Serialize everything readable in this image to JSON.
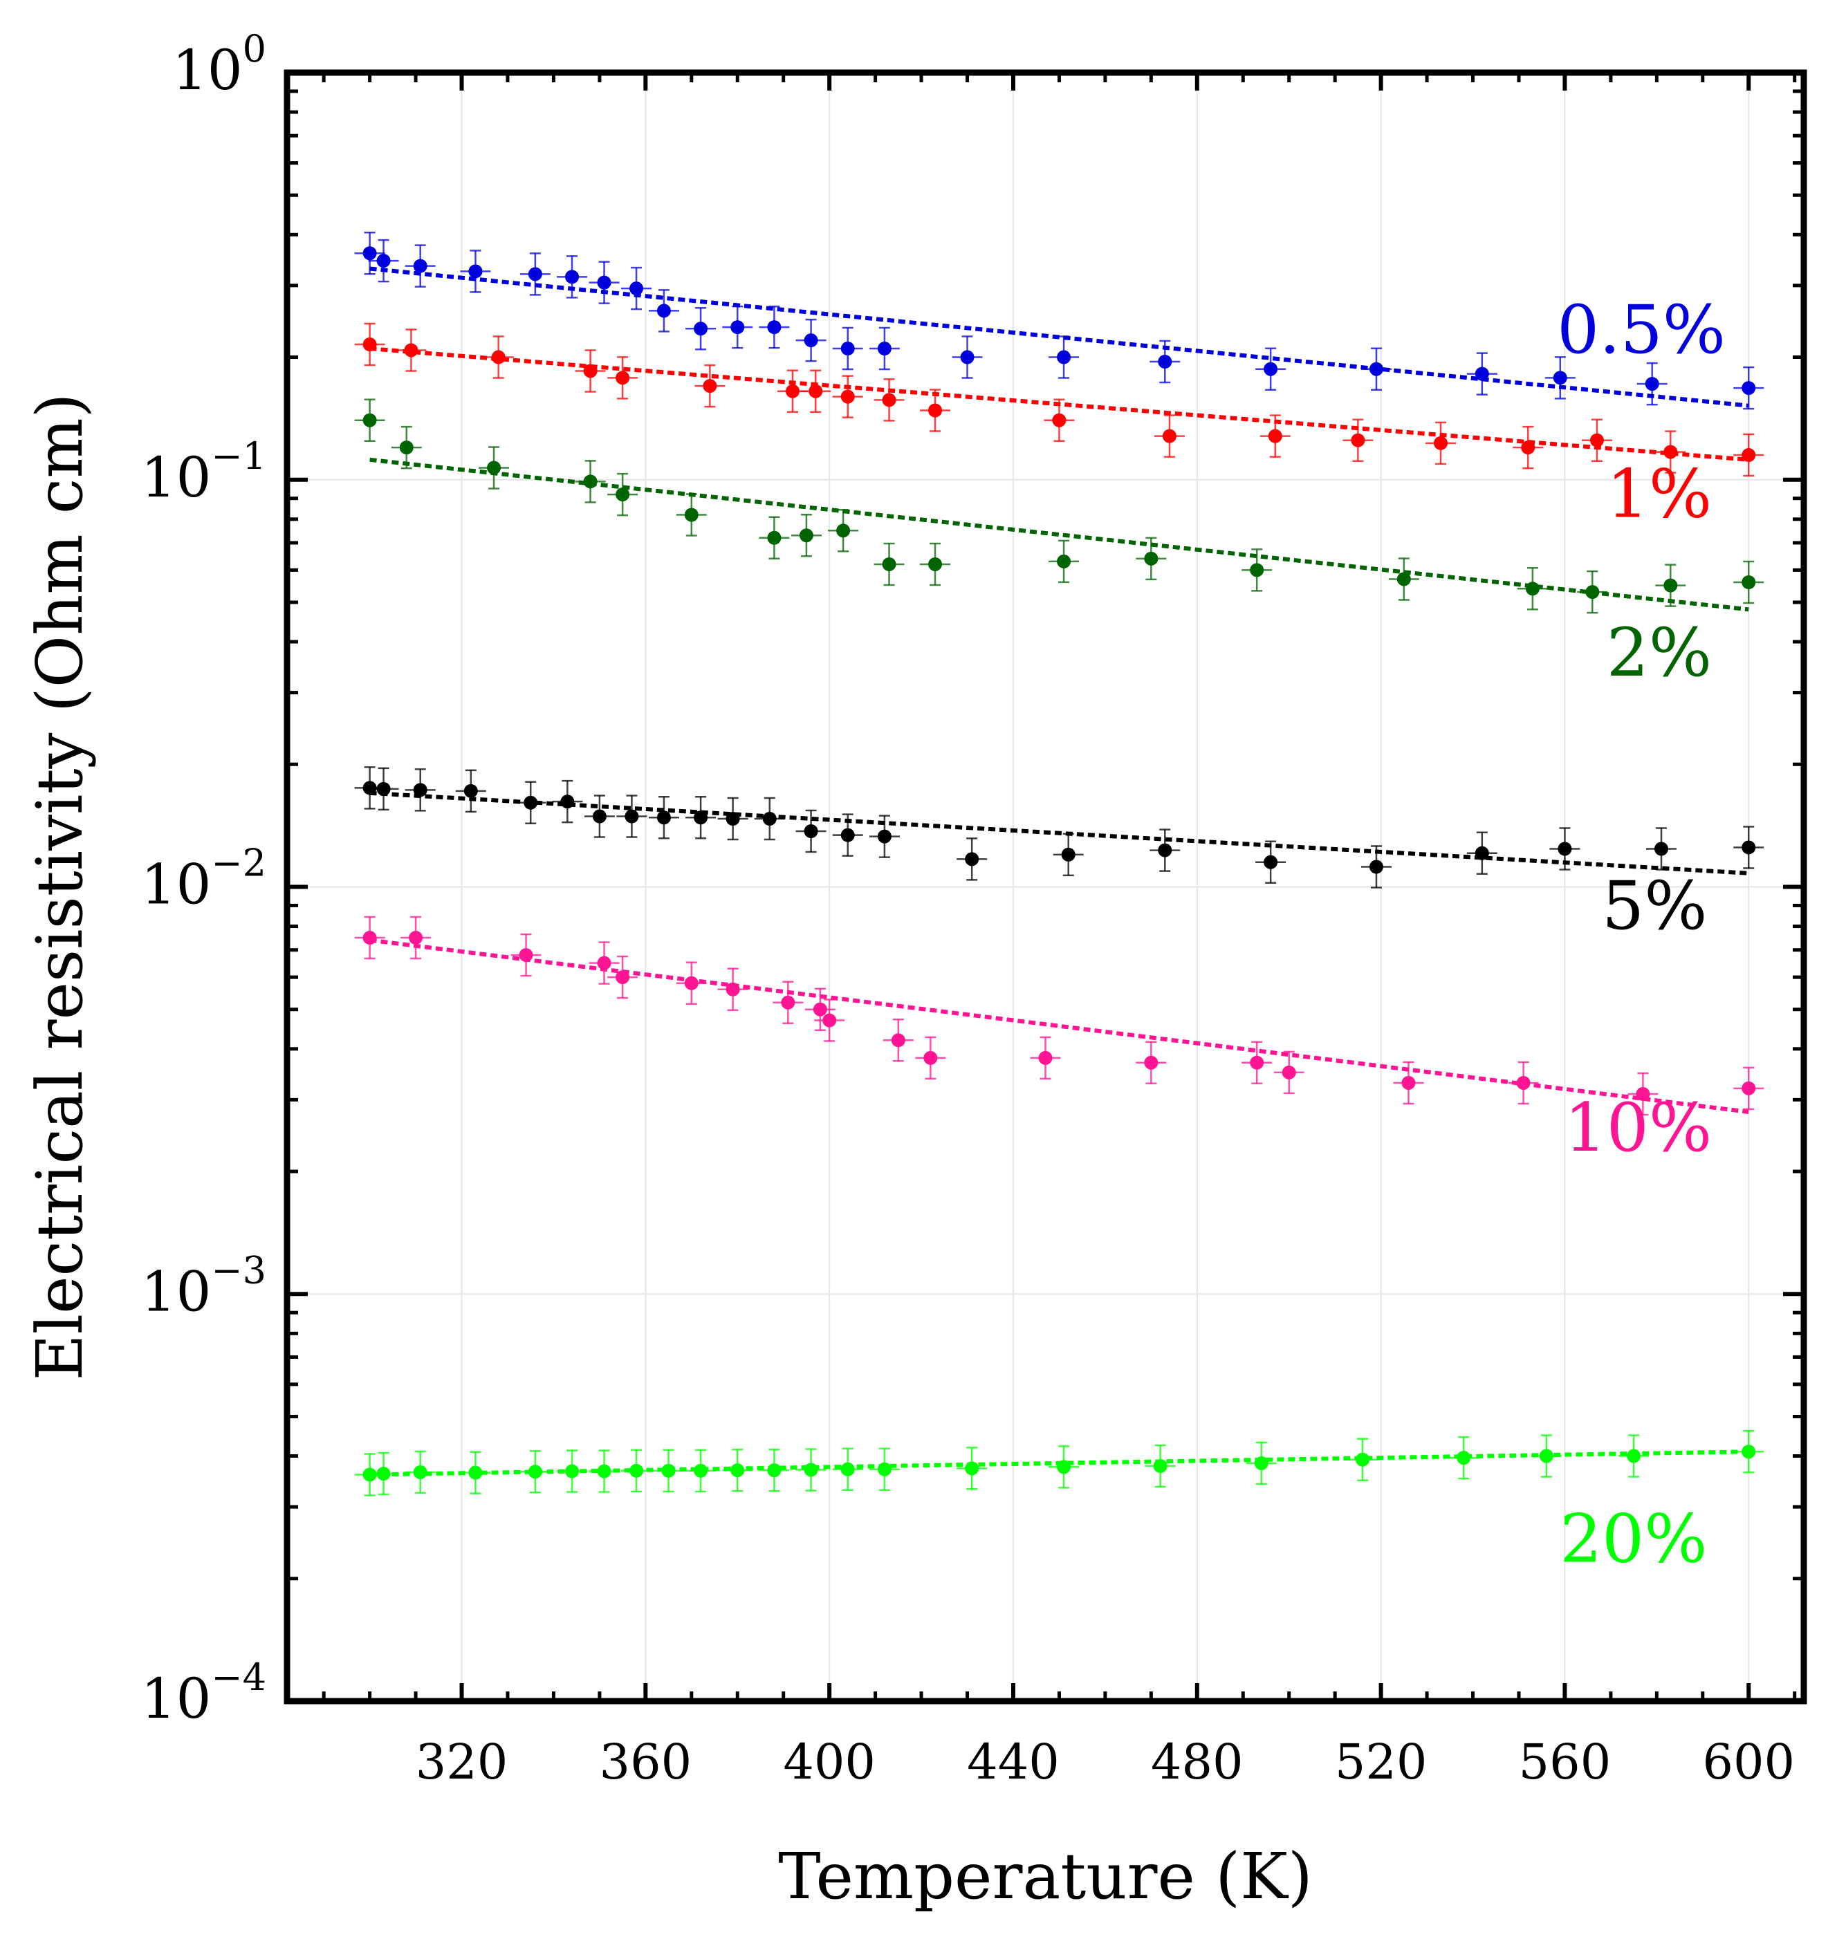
{
  "chart_data": {
    "type": "scatter",
    "title": "",
    "xlabel": "Temperature (K)",
    "ylabel": "Electrical resistivity (Ohm cm)",
    "xlim": [
      282,
      612
    ],
    "ylim": [
      0.0001,
      1
    ],
    "yscale": "log",
    "grid": true,
    "x_ticks": [
      320,
      360,
      400,
      440,
      480,
      520,
      560,
      600
    ],
    "x_tick_labels": [
      "320",
      "360",
      "400",
      "440",
      "480",
      "520",
      "560",
      "600"
    ],
    "y_ticks": [
      {
        "value": 1,
        "base": "10",
        "exp": "0"
      },
      {
        "value": 0.1,
        "base": "10",
        "exp": "−1"
      },
      {
        "value": 0.01,
        "base": "10",
        "exp": "−2"
      },
      {
        "value": 0.001,
        "base": "10",
        "exp": "−3"
      },
      {
        "value": 0.0001,
        "base": "10",
        "exp": "−4"
      }
    ],
    "series": [
      {
        "name": "0.5%",
        "color": "#0000dd",
        "x": [
          300,
          303,
          311,
          323,
          336,
          344,
          351,
          358,
          364,
          372,
          380,
          388,
          396,
          404,
          412,
          430,
          451,
          473,
          496,
          519,
          542,
          559,
          579,
          600
        ],
        "y": [
          0.36,
          0.345,
          0.335,
          0.325,
          0.32,
          0.315,
          0.305,
          0.295,
          0.26,
          0.235,
          0.237,
          0.237,
          0.22,
          0.21,
          0.21,
          0.2,
          0.2,
          0.195,
          0.187,
          0.187,
          0.182,
          0.178,
          0.172,
          0.168
        ],
        "fit": {
          "x": [
            300,
            600
          ],
          "y": [
            0.33,
            0.152
          ]
        }
      },
      {
        "name": "1%",
        "color": "#ff0000",
        "x": [
          300,
          309,
          328,
          348,
          355,
          374,
          392,
          397,
          404,
          413,
          423,
          450,
          474,
          497,
          515,
          533,
          552,
          567,
          583,
          600
        ],
        "y": [
          0.215,
          0.208,
          0.2,
          0.185,
          0.178,
          0.17,
          0.165,
          0.165,
          0.16,
          0.157,
          0.148,
          0.14,
          0.128,
          0.128,
          0.125,
          0.123,
          0.12,
          0.125,
          0.117,
          0.115
        ],
        "fit": {
          "x": [
            300,
            600
          ],
          "y": [
            0.21,
            0.112
          ]
        }
      },
      {
        "name": "2%",
        "color": "#006400",
        "x": [
          300,
          308,
          327,
          348,
          355,
          370,
          388,
          395,
          403,
          413,
          423,
          451,
          470,
          493,
          525,
          553,
          566,
          583,
          600
        ],
        "y": [
          0.14,
          0.12,
          0.107,
          0.099,
          0.092,
          0.082,
          0.072,
          0.073,
          0.075,
          0.062,
          0.062,
          0.063,
          0.064,
          0.06,
          0.057,
          0.054,
          0.053,
          0.055,
          0.056
        ],
        "fit": {
          "x": [
            300,
            600
          ],
          "y": [
            0.112,
            0.048
          ]
        }
      },
      {
        "name": "5%",
        "color": "#000000",
        "x": [
          300,
          303,
          311,
          322,
          335,
          343,
          350,
          357,
          364,
          372,
          379,
          387,
          396,
          404,
          412,
          431,
          452,
          473,
          496,
          519,
          542,
          560,
          581,
          600
        ],
        "y": [
          0.0175,
          0.0174,
          0.0173,
          0.0172,
          0.0161,
          0.0162,
          0.0149,
          0.0149,
          0.0148,
          0.0148,
          0.0147,
          0.0147,
          0.0137,
          0.0134,
          0.0133,
          0.0117,
          0.012,
          0.0123,
          0.0115,
          0.0112,
          0.0121,
          0.0124,
          0.0124,
          0.0125
        ],
        "fit": {
          "x": [
            300,
            600
          ],
          "y": [
            0.017,
            0.0108
          ]
        }
      },
      {
        "name": "10%",
        "color": "#ff1493",
        "x": [
          300,
          310,
          334,
          351,
          355,
          370,
          379,
          391,
          398,
          400,
          415,
          422,
          447,
          470,
          493,
          500,
          526,
          551,
          577,
          600
        ],
        "y": [
          0.0075,
          0.0075,
          0.0068,
          0.0065,
          0.006,
          0.0058,
          0.0056,
          0.0052,
          0.005,
          0.0047,
          0.0042,
          0.0038,
          0.0038,
          0.0037,
          0.0037,
          0.0035,
          0.0033,
          0.0033,
          0.0031,
          0.0032
        ],
        "fit": {
          "x": [
            300,
            600
          ],
          "y": [
            0.0074,
            0.0028
          ]
        }
      },
      {
        "name": "20%",
        "color": "#00ff00",
        "x": [
          300,
          303,
          311,
          323,
          336,
          344,
          351,
          358,
          365,
          372,
          380,
          388,
          396,
          404,
          412,
          431,
          451,
          472,
          494,
          516,
          538,
          556,
          575,
          600
        ],
        "y": [
          0.00036,
          0.000362,
          0.000365,
          0.000364,
          0.000366,
          0.000367,
          0.000367,
          0.000368,
          0.000368,
          0.000368,
          0.000369,
          0.000369,
          0.00037,
          0.000371,
          0.000371,
          0.000373,
          0.000376,
          0.000378,
          0.000384,
          0.000392,
          0.000396,
          0.0004,
          0.0004,
          0.00041
        ],
        "fit": {
          "x": [
            300,
            600
          ],
          "y": [
            0.00036,
            0.00041
          ]
        }
      }
    ],
    "annotations": [
      {
        "text": "0.5%",
        "x": 595,
        "y": 0.205,
        "color": "#0000dd"
      },
      {
        "text": "1%",
        "x": 592,
        "y": 0.081,
        "color": "#ff0000"
      },
      {
        "text": "2%",
        "x": 592,
        "y": 0.033,
        "color": "#006400"
      },
      {
        "text": "5%",
        "x": 591,
        "y": 0.0079,
        "color": "#000000"
      },
      {
        "text": "10%",
        "x": 592,
        "y": 0.00225,
        "color": "#ff1493"
      },
      {
        "text": "20%",
        "x": 591,
        "y": 0.00022,
        "color": "#00ff00"
      }
    ]
  }
}
